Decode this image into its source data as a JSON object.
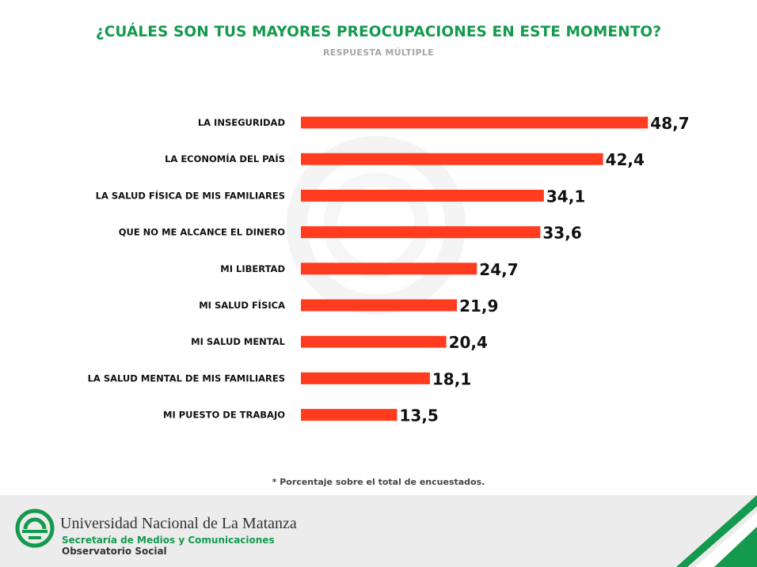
{
  "header": {
    "title": "¿CUÁLES SON TUS MAYORES PREOCUPACIONES EN ESTE MOMENTO?",
    "subtitle": "RESPUESTA MÚLTIPLE"
  },
  "chart_data": {
    "type": "bar",
    "orientation": "horizontal",
    "title": "¿CUÁLES SON TUS MAYORES PREOCUPACIONES EN ESTE MOMENTO?",
    "subtitle": "RESPUESTA MÚLTIPLE",
    "categories": [
      "LA INSEGURIDAD",
      "LA ECONOMÍA DEL PAÍS",
      "LA SALUD FÍSICA DE MIS FAMILIARES",
      "QUE NO ME ALCANCE EL DINERO",
      "MI LIBERTAD",
      "MI SALUD FÍSICA",
      "MI SALUD MENTAL",
      "LA SALUD MENTAL DE MIS FAMILIARES",
      "MI PUESTO DE TRABAJO"
    ],
    "values": [
      48.7,
      42.4,
      34.1,
      33.6,
      24.7,
      21.9,
      20.4,
      18.1,
      13.5
    ],
    "value_labels": [
      "48,7",
      "42,4",
      "34,1",
      "33,6",
      "24,7",
      "21,9",
      "20,4",
      "18,1",
      "13,5"
    ],
    "xlim": [
      0,
      50
    ],
    "bar_color": "#ff3c1f",
    "xlabel": "",
    "ylabel": "",
    "grid": false
  },
  "footnote": "* Porcentaje sobre el total de encuestados.",
  "footer": {
    "university": "Universidad Nacional de La Matanza",
    "department": "Secretaría de Medios y Comunicaciones",
    "unit": "Observatorio Social"
  },
  "colors": {
    "accent_green": "#149a4e",
    "bar": "#ff3c1f",
    "footer_bg": "#ececec"
  }
}
